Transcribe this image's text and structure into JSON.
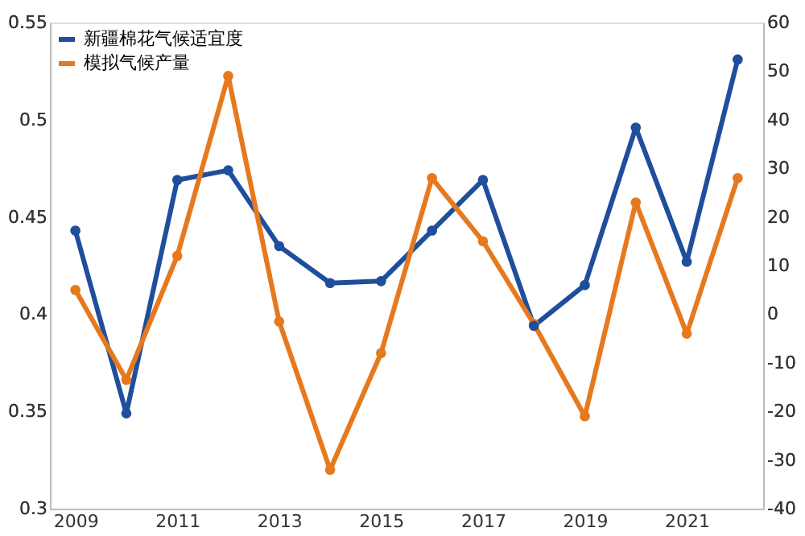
{
  "chart_data": {
    "type": "line",
    "x": [
      2009,
      2010,
      2011,
      2012,
      2013,
      2014,
      2015,
      2016,
      2017,
      2018,
      2019,
      2020,
      2021,
      2022
    ],
    "series": [
      {
        "name": "新疆棉花气候适宜度",
        "color": "#1f4e9c",
        "values": [
          0.443,
          0.349,
          0.469,
          0.474,
          0.435,
          0.416,
          0.417,
          0.443,
          0.469,
          0.394,
          0.415,
          0.496,
          0.427,
          0.531
        ]
      },
      {
        "name": "模拟气候产量",
        "color": "#e6791e",
        "axis": "y2",
        "values": [
          5,
          -13.5,
          12,
          49,
          -1.5,
          -32,
          -8,
          28,
          15,
          -2,
          -21,
          23,
          -4,
          28
        ]
      }
    ],
    "xlim": [
      2008.5,
      2022.5
    ],
    "xticks": [
      2009,
      2011,
      2013,
      2015,
      2017,
      2019,
      2021
    ],
    "ylim": [
      0.3,
      0.55
    ],
    "yticks": [
      0.3,
      0.35,
      0.4,
      0.45,
      0.5,
      0.55
    ],
    "y2lim": [
      -40,
      60
    ],
    "y2ticks": [
      -40,
      -30,
      -20,
      -10,
      0,
      10,
      20,
      30,
      40,
      50,
      60
    ],
    "grid": false,
    "legend": "top left",
    "marker": "circle",
    "line_style": "solid"
  }
}
